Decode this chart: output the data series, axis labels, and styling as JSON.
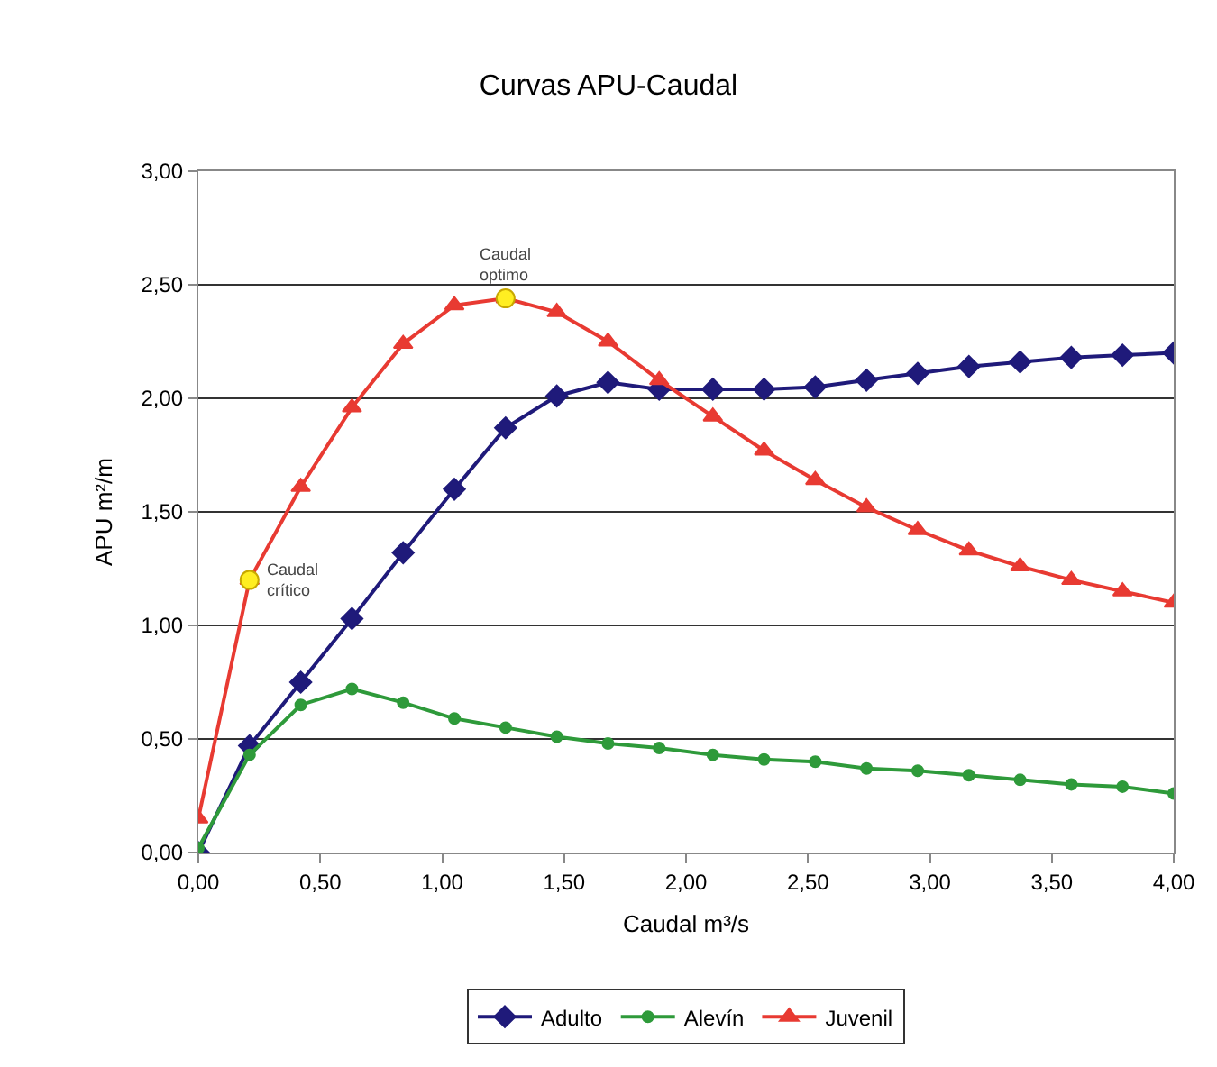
{
  "chart_data": {
    "type": "line",
    "title": "Curvas APU-Caudal",
    "xlabel": "Caudal m³/s",
    "ylabel": "APU m²/m",
    "x": [
      0,
      0.21,
      0.42,
      0.63,
      0.84,
      1.05,
      1.26,
      1.47,
      1.68,
      1.89,
      2.11,
      2.32,
      2.53,
      2.74,
      2.95,
      3.16,
      3.37,
      3.58,
      3.79,
      4
    ],
    "series": [
      {
        "name": "Adulto",
        "color": "#1f1a7a",
        "marker": "diamond",
        "values": [
          0,
          0.47,
          0.75,
          1.03,
          1.32,
          1.6,
          1.87,
          2.01,
          2.07,
          2.04,
          2.04,
          2.04,
          2.05,
          2.08,
          2.11,
          2.14,
          2.16,
          2.18,
          2.19,
          2.2
        ]
      },
      {
        "name": "Alevín",
        "color": "#2e9a3a",
        "marker": "circle",
        "values": [
          0.02,
          0.43,
          0.65,
          0.72,
          0.66,
          0.59,
          0.55,
          0.51,
          0.48,
          0.46,
          0.43,
          0.41,
          0.4,
          0.37,
          0.36,
          0.34,
          0.32,
          0.3,
          0.29,
          0.26
        ]
      },
      {
        "name": "Juvenil",
        "color": "#e83a32",
        "marker": "triangle",
        "values": [
          0.15,
          1.2,
          1.61,
          1.96,
          2.24,
          2.41,
          2.44,
          2.38,
          2.25,
          2.08,
          1.92,
          1.77,
          1.64,
          1.52,
          1.42,
          1.33,
          1.26,
          1.2,
          1.15,
          1.1
        ]
      },
      {
        "type": "scatter",
        "color": "#ffee22",
        "marker": "circle",
        "x": [
          0.21,
          1.26
        ],
        "values": [
          1.2,
          2.44
        ]
      }
    ],
    "annotations": [
      {
        "text": "Caudal crítico",
        "x": 0.21,
        "y": 1.2
      },
      {
        "text": "Caudal optimo",
        "x": 1.26,
        "y": 2.44
      }
    ],
    "xlim": [
      0,
      4
    ],
    "xticks": [
      {
        "value": 0,
        "label": "0,00"
      },
      {
        "value": 0.5,
        "label": "0,50"
      },
      {
        "value": 1,
        "label": "1,00"
      },
      {
        "value": 1.5,
        "label": "1,50"
      },
      {
        "value": 2,
        "label": "2,00"
      },
      {
        "value": 2.5,
        "label": "2,50"
      },
      {
        "value": 3,
        "label": "3,00"
      },
      {
        "value": 3.5,
        "label": "3,50"
      },
      {
        "value": 4,
        "label": "4,00"
      }
    ],
    "ylim": [
      0,
      3
    ],
    "yticks": [
      {
        "value": 0,
        "label": "0,00"
      },
      {
        "value": 0.5,
        "label": "0,50"
      },
      {
        "value": 1,
        "label": "1,00"
      },
      {
        "value": 1.5,
        "label": "1,50"
      },
      {
        "value": 2,
        "label": "2,00"
      },
      {
        "value": 2.5,
        "label": "2,50"
      },
      {
        "value": 3,
        "label": "3,00"
      }
    ],
    "grid": "y",
    "legend": "bottom"
  }
}
